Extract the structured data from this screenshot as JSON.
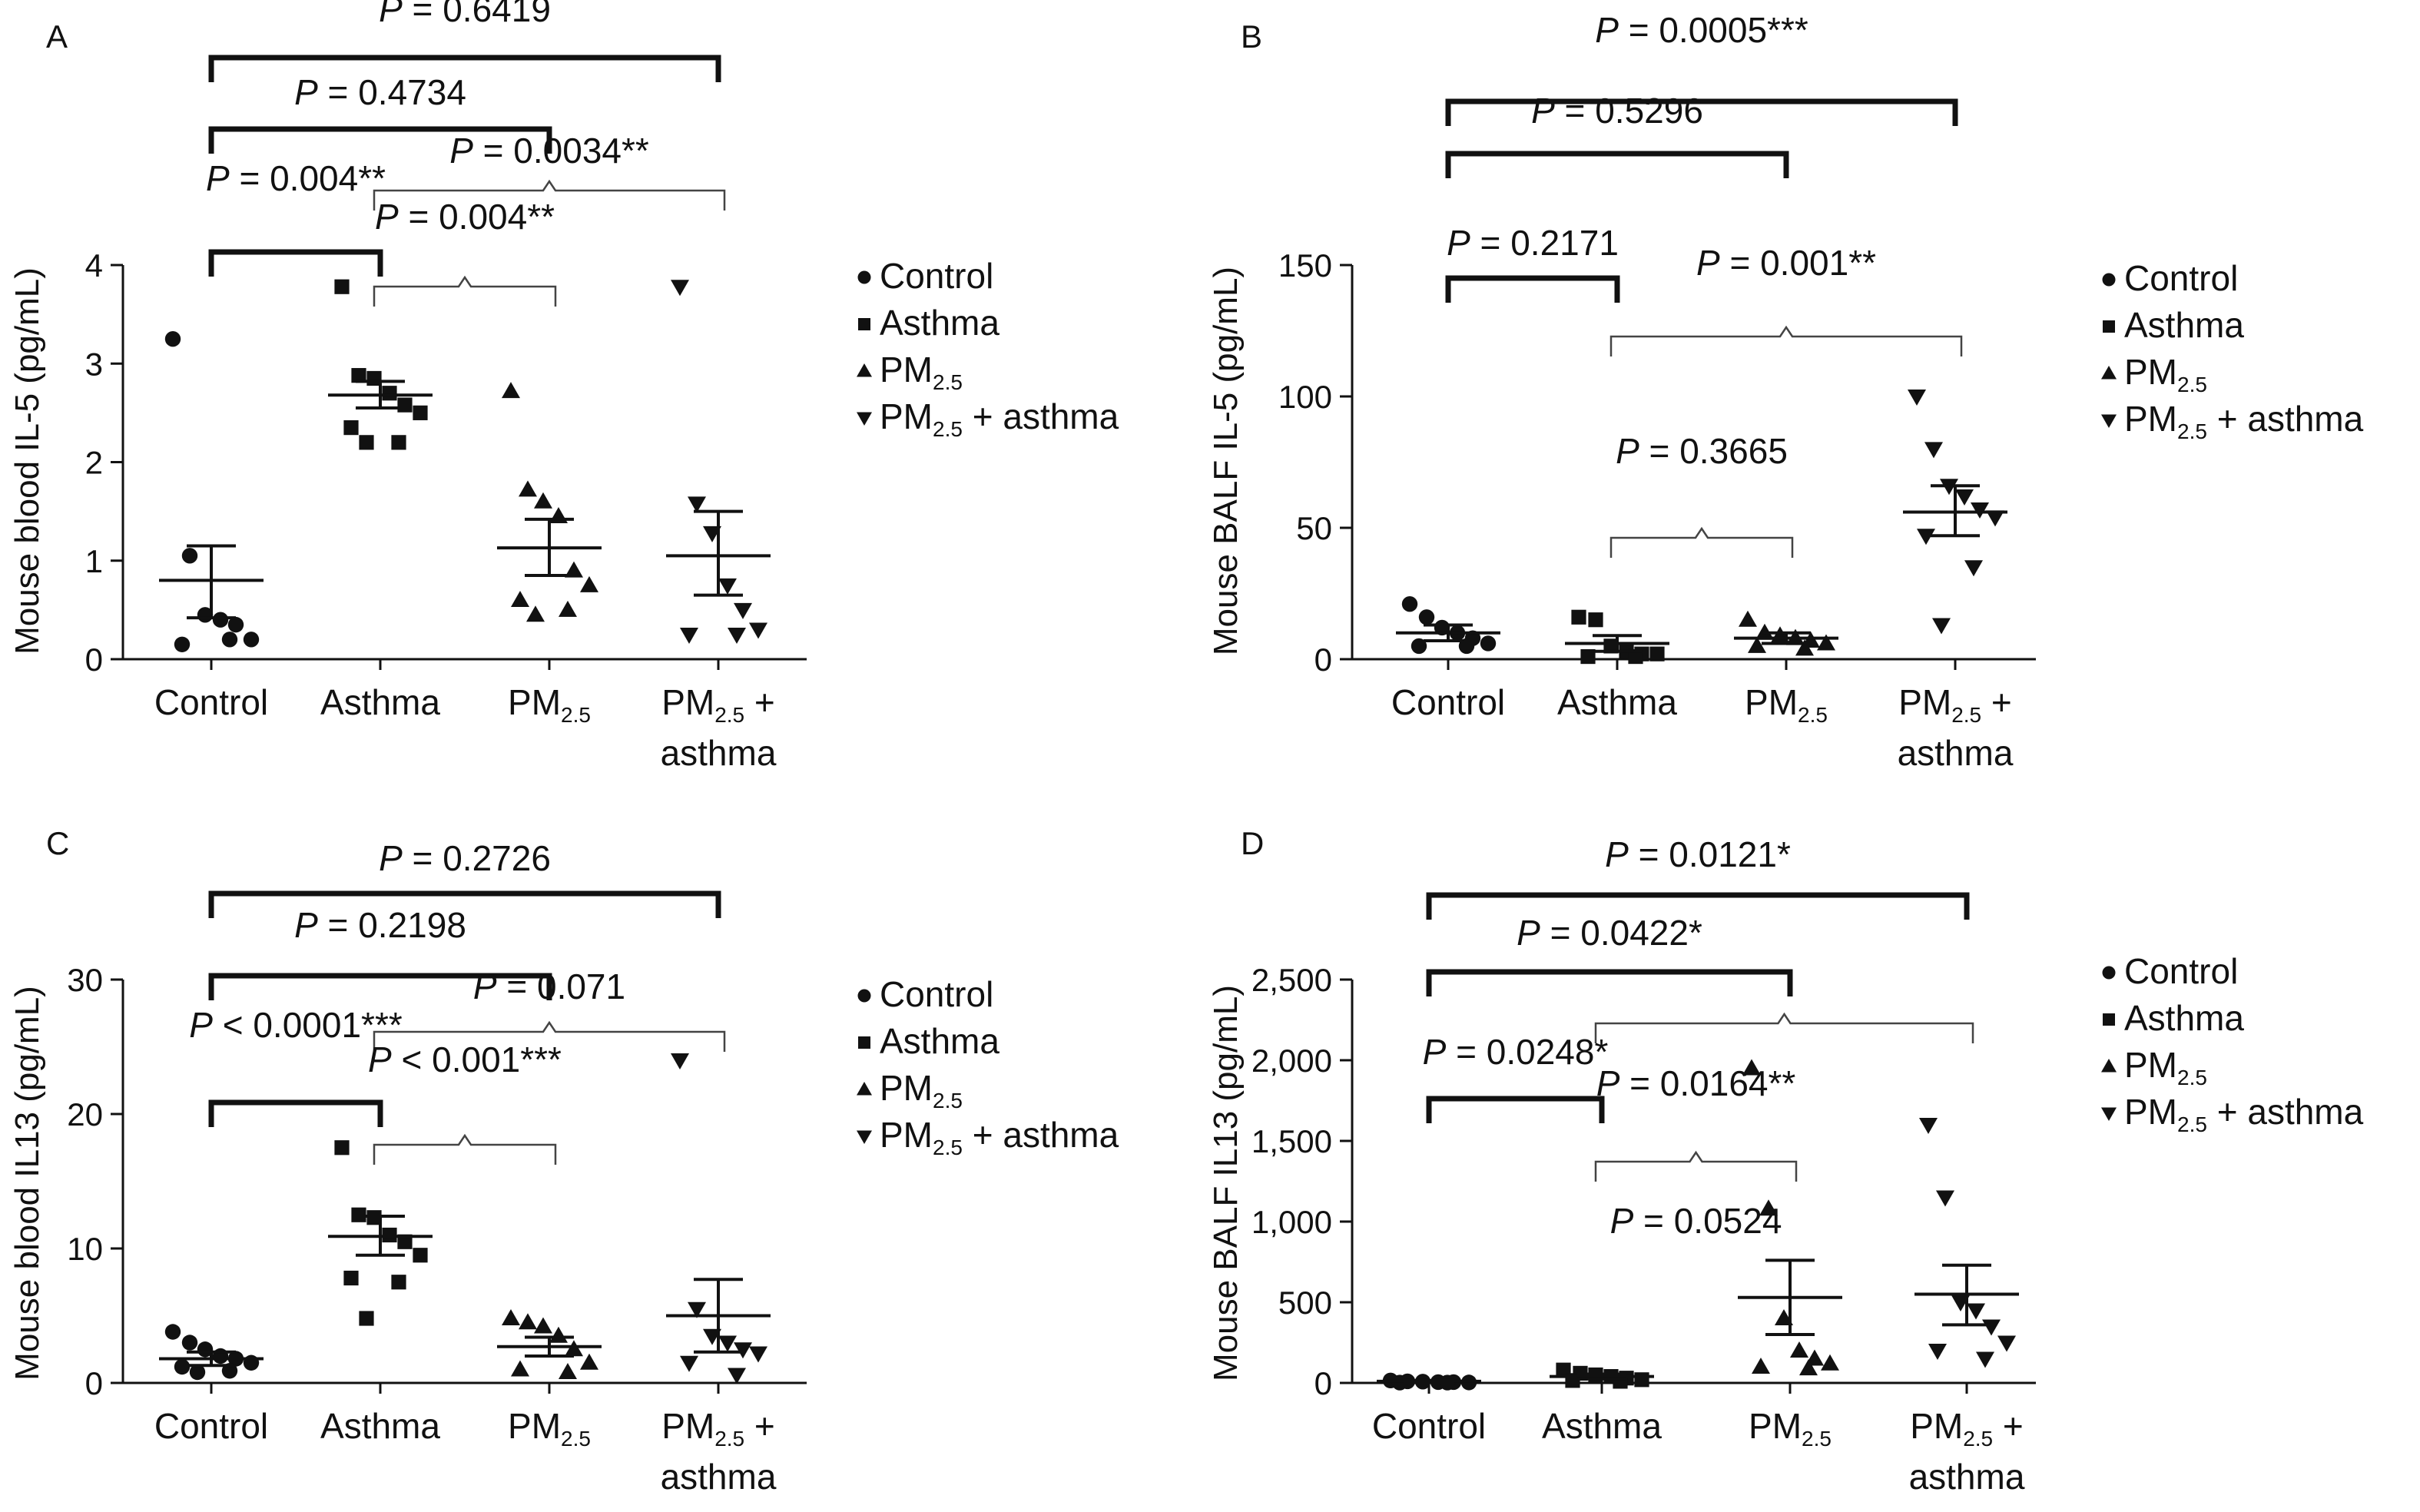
{
  "panels": [
    {
      "letter": "A",
      "ylabel": "Mouse blood IL-5 (pg/mL)",
      "chart_data": {
        "type": "scatter",
        "ylim": [
          0,
          4
        ],
        "yticks": [
          {
            "v": 0,
            "t": "0"
          },
          {
            "v": 1,
            "t": "1"
          },
          {
            "v": 2,
            "t": "2"
          },
          {
            "v": 3,
            "t": "3"
          },
          {
            "v": 4,
            "t": "4"
          }
        ],
        "groups": [
          {
            "id": "control",
            "marker": "circle",
            "mean": 0.8,
            "sem_lo": 0.42,
            "sem_hi": 1.15,
            "points": [
              3.25,
              1.05,
              0.45,
              0.4,
              0.35,
              0.2,
              0.15,
              0.2
            ]
          },
          {
            "id": "asthma",
            "marker": "square",
            "mean": 2.68,
            "sem_lo": 2.55,
            "sem_hi": 2.82,
            "points": [
              3.78,
              2.88,
              2.85,
              2.7,
              2.58,
              2.5,
              2.35,
              2.2,
              2.2
            ]
          },
          {
            "id": "pm25",
            "marker": "triangle",
            "mean": 1.13,
            "sem_lo": 0.85,
            "sem_hi": 1.42,
            "points": [
              2.72,
              1.72,
              1.6,
              1.45,
              0.9,
              0.75,
              0.6,
              0.5,
              0.45
            ]
          },
          {
            "id": "pm25asthma",
            "marker": "invtriangle",
            "mean": 1.05,
            "sem_lo": 0.65,
            "sem_hi": 1.5,
            "points": [
              3.78,
              1.58,
              1.28,
              0.75,
              0.5,
              0.3,
              0.25,
              0.25
            ]
          }
        ],
        "comparisons": [
          {
            "style": "heavy",
            "from": 0,
            "to": 3,
            "label": "= 0.6419",
            "stars": "",
            "level": 1
          },
          {
            "style": "heavy",
            "from": 0,
            "to": 2,
            "label": "= 0.4734",
            "stars": "",
            "level": 2
          },
          {
            "style": "brace",
            "from": 1,
            "to": 3,
            "label": "= 0.0034",
            "stars": "**",
            "level": 3
          },
          {
            "style": "heavy",
            "from": 0,
            "to": 1,
            "label": "= 0.004",
            "stars": "**",
            "level": 4
          },
          {
            "style": "brace",
            "from": 1,
            "to": 2,
            "label": "= 0.004",
            "stars": "**",
            "level": 5
          }
        ]
      }
    },
    {
      "letter": "B",
      "ylabel": "Mouse BALF IL-5 (pg/mL)",
      "chart_data": {
        "type": "scatter",
        "ylim": [
          0,
          150
        ],
        "yticks": [
          {
            "v": 0,
            "t": "0"
          },
          {
            "v": 50,
            "t": "50"
          },
          {
            "v": 100,
            "t": "100"
          },
          {
            "v": 150,
            "t": "150"
          }
        ],
        "groups": [
          {
            "id": "control",
            "marker": "circle",
            "mean": 10,
            "sem_lo": 7,
            "sem_hi": 13,
            "points": [
              21,
              16,
              12,
              10,
              8,
              6,
              5,
              5
            ]
          },
          {
            "id": "asthma",
            "marker": "square",
            "mean": 6,
            "sem_lo": 3,
            "sem_hi": 9,
            "points": [
              16,
              15,
              5,
              3,
              2,
              2,
              1,
              1
            ]
          },
          {
            "id": "pm25",
            "marker": "triangle",
            "mean": 8,
            "sem_lo": 6,
            "sem_hi": 10,
            "points": [
              15,
              10,
              9,
              8,
              7,
              6,
              5,
              4
            ]
          },
          {
            "id": "pm25asthma",
            "marker": "invtriangle",
            "mean": 56,
            "sem_lo": 47,
            "sem_hi": 66,
            "points": [
              100,
              80,
              66,
              62,
              57,
              54,
              47,
              35,
              13
            ]
          }
        ],
        "comparisons": [
          {
            "style": "heavy",
            "from": 0,
            "to": 3,
            "label": "= 0.0005",
            "stars": "***",
            "level": 1
          },
          {
            "style": "heavy",
            "from": 0,
            "to": 2,
            "label": "= 0.5296",
            "stars": "",
            "level": 2
          },
          {
            "style": "heavy",
            "from": 0,
            "to": 1,
            "label": "= 0.2171",
            "stars": "",
            "level": 3
          },
          {
            "style": "brace",
            "from": 1,
            "to": 3,
            "label": "= 0.001",
            "stars": "**",
            "level": 4
          },
          {
            "style": "brace",
            "from": 1,
            "to": 2,
            "label": "= 0.3665",
            "stars": "",
            "level": 5
          }
        ]
      }
    },
    {
      "letter": "C",
      "ylabel": "Mouse blood IL13 (pg/mL)",
      "chart_data": {
        "type": "scatter",
        "ylim": [
          0,
          30
        ],
        "yticks": [
          {
            "v": 0,
            "t": "0"
          },
          {
            "v": 10,
            "t": "10"
          },
          {
            "v": 20,
            "t": "20"
          },
          {
            "v": 30,
            "t": "30"
          }
        ],
        "groups": [
          {
            "id": "control",
            "marker": "circle",
            "mean": 1.8,
            "sem_lo": 1.3,
            "sem_hi": 2.3,
            "points": [
              3.8,
              3.0,
              2.5,
              2.0,
              1.8,
              1.5,
              1.2,
              0.9,
              0.8
            ]
          },
          {
            "id": "asthma",
            "marker": "square",
            "mean": 10.9,
            "sem_lo": 9.5,
            "sem_hi": 12.4,
            "points": [
              17.5,
              12.5,
              12.3,
              11.0,
              10.5,
              9.5,
              7.8,
              7.5,
              4.8
            ]
          },
          {
            "id": "pm25",
            "marker": "triangle",
            "mean": 2.7,
            "sem_lo": 2.0,
            "sem_hi": 3.4,
            "points": [
              4.8,
              4.5,
              4.2,
              3.5,
              2.5,
              1.5,
              1.0,
              0.8
            ]
          },
          {
            "id": "pm25asthma",
            "marker": "invtriangle",
            "mean": 5.0,
            "sem_lo": 2.3,
            "sem_hi": 7.7,
            "points": [
              24,
              5.5,
              3.5,
              3.0,
              2.5,
              2.2,
              1.5,
              0.6
            ]
          }
        ],
        "comparisons": [
          {
            "style": "heavy",
            "from": 0,
            "to": 3,
            "label": "= 0.2726",
            "stars": "",
            "level": 1
          },
          {
            "style": "heavy",
            "from": 0,
            "to": 2,
            "label": "= 0.2198",
            "stars": "",
            "level": 2
          },
          {
            "style": "brace",
            "from": 1,
            "to": 3,
            "label": "= 0.071",
            "stars": "",
            "level": 3
          },
          {
            "style": "heavy",
            "from": 0,
            "to": 1,
            "label": "< 0.0001",
            "stars": "***",
            "level": 4
          },
          {
            "style": "brace",
            "from": 1,
            "to": 2,
            "label": "< 0.001",
            "stars": "***",
            "level": 5
          }
        ]
      }
    },
    {
      "letter": "D",
      "ylabel": "Mouse BALF IL13 (pg/mL)",
      "chart_data": {
        "type": "scatter",
        "ylim": [
          0,
          2500
        ],
        "yticks": [
          {
            "v": 0,
            "t": "0"
          },
          {
            "v": 500,
            "t": "500"
          },
          {
            "v": 1000,
            "t": "1,000"
          },
          {
            "v": 1500,
            "t": "1,500"
          },
          {
            "v": 2000,
            "t": "2,000"
          },
          {
            "v": 2500,
            "t": "2,500"
          }
        ],
        "groups": [
          {
            "id": "control",
            "marker": "circle",
            "mean": 10,
            "sem_lo": 5,
            "sem_hi": 15,
            "points": [
              15,
              10,
              8,
              5,
              5,
              3,
              2,
              2
            ]
          },
          {
            "id": "asthma",
            "marker": "square",
            "mean": 40,
            "sem_lo": 25,
            "sem_hi": 55,
            "points": [
              80,
              60,
              50,
              40,
              30,
              20,
              15,
              10
            ]
          },
          {
            "id": "pm25",
            "marker": "triangle",
            "mean": 530,
            "sem_lo": 300,
            "sem_hi": 760,
            "points": [
              1950,
              1080,
              400,
              200,
              150,
              120,
              100,
              90
            ]
          },
          {
            "id": "pm25asthma",
            "marker": "invtriangle",
            "mean": 550,
            "sem_lo": 360,
            "sem_hi": 730,
            "points": [
              1600,
              1150,
              500,
              450,
              350,
              250,
              200,
              150
            ]
          }
        ],
        "comparisons": [
          {
            "style": "heavy",
            "from": 0,
            "to": 3,
            "label": "= 0.0121",
            "stars": "*",
            "level": 1
          },
          {
            "style": "heavy",
            "from": 0,
            "to": 2,
            "label": "= 0.0422",
            "stars": "*",
            "level": 2
          },
          {
            "style": "brace",
            "from": 1,
            "to": 3,
            "label": "",
            "stars": "",
            "level": 3
          },
          {
            "style": "heavy",
            "from": 0,
            "to": 1,
            "label": "= 0.0248",
            "stars": "*",
            "level": 4
          },
          {
            "style": "brace",
            "from": 1,
            "to": 2,
            "label": "= 0.0164",
            "stars": "**",
            "level": 5
          },
          {
            "style": "label",
            "from": 1,
            "to": 2,
            "label": "= 0.0524",
            "stars": "",
            "level": 6
          }
        ]
      }
    }
  ],
  "categories": [
    {
      "main": "Control",
      "sub": "",
      "tail": "",
      "line2": ""
    },
    {
      "main": "Asthma",
      "sub": "",
      "tail": "",
      "line2": ""
    },
    {
      "main": "PM",
      "sub": "2.5",
      "tail": "",
      "line2": ""
    },
    {
      "main": "PM",
      "sub": "2.5",
      "tail": " +",
      "line2": "asthma"
    }
  ],
  "legend": [
    {
      "marker": "circle",
      "main": "Control",
      "sub": "",
      "tail": ""
    },
    {
      "marker": "square",
      "main": "Asthma",
      "sub": "",
      "tail": ""
    },
    {
      "marker": "triangle",
      "main": "PM",
      "sub": "2.5",
      "tail": ""
    },
    {
      "marker": "invtriangle",
      "main": "PM",
      "sub": "2.5",
      "tail": " + asthma"
    }
  ],
  "p_symbol": "P",
  "colors": {
    "ink": "#111111",
    "bracket": "#111111",
    "brace": "#444444"
  }
}
